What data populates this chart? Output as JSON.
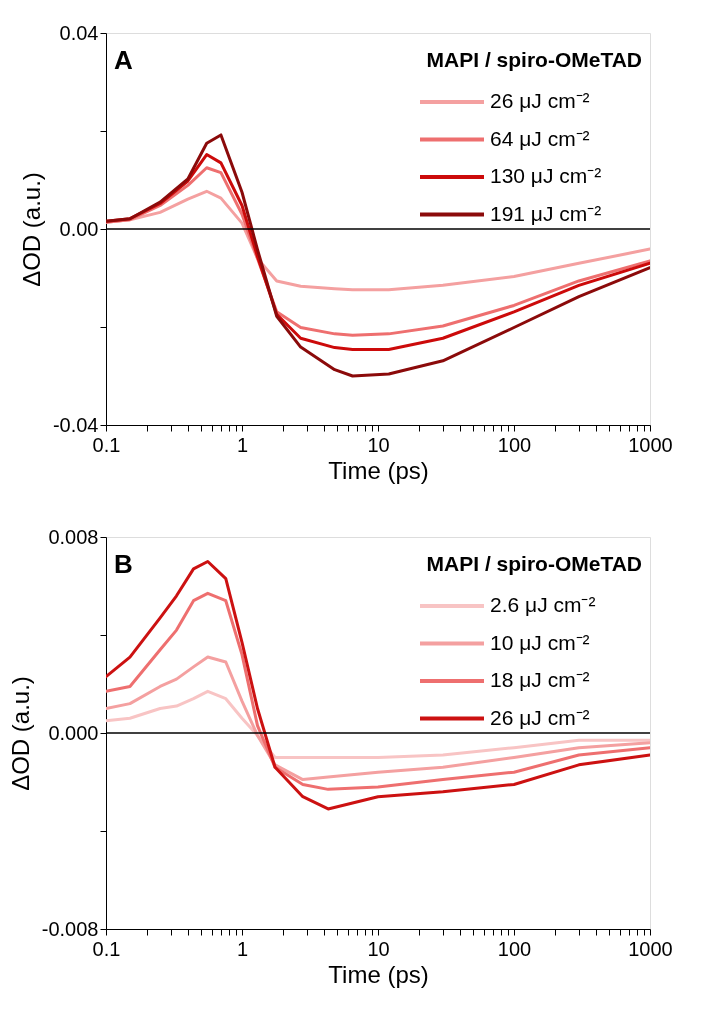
{
  "chart_data": [
    {
      "type": "line",
      "annotations": [
        "A"
      ],
      "legend_title": "MAPI / spiro-OMeTAD",
      "legend": "top right",
      "xlabel": "Time (ps)",
      "ylabel": "ΔOD (a.u.)",
      "log": "x",
      "grid": false,
      "line_style": "solid",
      "marker": "none",
      "xlim": [
        0.1,
        1000
      ],
      "ylim": [
        -0.04,
        0.04
      ],
      "xticks": [
        0.1,
        {
          "value": 0.2,
          "label": null
        },
        {
          "value": 0.3,
          "label": null
        },
        {
          "value": 0.4,
          "label": null
        },
        {
          "value": 0.5,
          "label": null
        },
        {
          "value": 0.6,
          "label": null
        },
        {
          "value": 0.7,
          "label": null
        },
        {
          "value": 0.8,
          "label": null
        },
        {
          "value": 0.9,
          "label": null
        },
        1,
        {
          "value": 2,
          "label": null
        },
        {
          "value": 3,
          "label": null
        },
        {
          "value": 4,
          "label": null
        },
        {
          "value": 5,
          "label": null
        },
        {
          "value": 6,
          "label": null
        },
        {
          "value": 7,
          "label": null
        },
        {
          "value": 8,
          "label": null
        },
        {
          "value": 9,
          "label": null
        },
        10,
        {
          "value": 20,
          "label": null
        },
        {
          "value": 30,
          "label": null
        },
        {
          "value": 40,
          "label": null
        },
        {
          "value": 50,
          "label": null
        },
        {
          "value": 60,
          "label": null
        },
        {
          "value": 70,
          "label": null
        },
        {
          "value": 80,
          "label": null
        },
        {
          "value": 90,
          "label": null
        },
        100,
        {
          "value": 200,
          "label": null
        },
        {
          "value": 300,
          "label": null
        },
        {
          "value": 400,
          "label": null
        },
        {
          "value": 500,
          "label": null
        },
        {
          "value": 600,
          "label": null
        },
        {
          "value": 700,
          "label": null
        },
        {
          "value": 800,
          "label": null
        },
        {
          "value": 900,
          "label": null
        },
        1000
      ],
      "yticks": [
        -0.04,
        {
          "value": -0.02,
          "label": null
        },
        {
          "value": 0,
          "label": "0.00"
        },
        {
          "value": 0.02,
          "label": null
        },
        0.04
      ],
      "ref_lines": [
        {
          "axis": "y",
          "value": 0,
          "color": "#000000"
        }
      ],
      "x": [
        0.1,
        0.15,
        0.25,
        0.4,
        0.55,
        0.7,
        1,
        1.3,
        1.8,
        2.7,
        4.8,
        6.5,
        12,
        30,
        100,
        300,
        1000
      ],
      "series": [
        {
          "name": "26 μJ cm⁻²",
          "color": "#f4a0a0",
          "values": [
            0.0014,
            0.0019,
            0.0034,
            0.0061,
            0.0077,
            0.0063,
            0.0012,
            -0.006,
            -0.0106,
            -0.0117,
            -0.0122,
            -0.0124,
            -0.0124,
            -0.0115,
            -0.0097,
            -0.007,
            -0.0041
          ]
        },
        {
          "name": "64 μJ cm⁻²",
          "color": "#ee6f6f",
          "values": [
            0.0014,
            0.0019,
            0.0048,
            0.0089,
            0.0125,
            0.0115,
            0.003,
            -0.006,
            -0.0169,
            -0.0201,
            -0.0214,
            -0.0217,
            -0.0214,
            -0.0198,
            -0.0156,
            -0.0106,
            -0.0065
          ]
        },
        {
          "name": "130 μJ cm⁻²",
          "color": "#cc0a0a",
          "values": [
            0.0016,
            0.0021,
            0.0052,
            0.0098,
            0.0152,
            0.0135,
            0.0048,
            -0.0056,
            -0.0174,
            -0.0223,
            -0.0242,
            -0.0246,
            -0.0246,
            -0.0223,
            -0.0169,
            -0.0115,
            -0.007
          ]
        },
        {
          "name": "191 μJ cm⁻²",
          "color": "#8b0a0a",
          "values": [
            0.0016,
            0.0021,
            0.0055,
            0.0102,
            0.0175,
            0.0192,
            0.0075,
            -0.0042,
            -0.0178,
            -0.0241,
            -0.0287,
            -0.03,
            -0.0296,
            -0.0269,
            -0.0201,
            -0.0138,
            -0.0079
          ]
        }
      ]
    },
    {
      "type": "line",
      "annotations": [
        "B"
      ],
      "legend_title": "MAPI / spiro-OMeTAD",
      "legend": "top right",
      "xlabel": "Time (ps)",
      "ylabel": "ΔOD (a.u.)",
      "log": "x",
      "grid": false,
      "line_style": "solid",
      "marker": "none",
      "xlim": [
        0.1,
        1000
      ],
      "ylim": [
        -0.008,
        0.008
      ],
      "xticks": [
        0.1,
        {
          "value": 0.2,
          "label": null
        },
        {
          "value": 0.3,
          "label": null
        },
        {
          "value": 0.4,
          "label": null
        },
        {
          "value": 0.5,
          "label": null
        },
        {
          "value": 0.6,
          "label": null
        },
        {
          "value": 0.7,
          "label": null
        },
        {
          "value": 0.8,
          "label": null
        },
        {
          "value": 0.9,
          "label": null
        },
        1,
        {
          "value": 2,
          "label": null
        },
        {
          "value": 3,
          "label": null
        },
        {
          "value": 4,
          "label": null
        },
        {
          "value": 5,
          "label": null
        },
        {
          "value": 6,
          "label": null
        },
        {
          "value": 7,
          "label": null
        },
        {
          "value": 8,
          "label": null
        },
        {
          "value": 9,
          "label": null
        },
        10,
        {
          "value": 20,
          "label": null
        },
        {
          "value": 30,
          "label": null
        },
        {
          "value": 40,
          "label": null
        },
        {
          "value": 50,
          "label": null
        },
        {
          "value": 60,
          "label": null
        },
        {
          "value": 70,
          "label": null
        },
        {
          "value": 80,
          "label": null
        },
        {
          "value": 90,
          "label": null
        },
        100,
        {
          "value": 200,
          "label": null
        },
        {
          "value": 300,
          "label": null
        },
        {
          "value": 400,
          "label": null
        },
        {
          "value": 500,
          "label": null
        },
        {
          "value": 600,
          "label": null
        },
        {
          "value": 700,
          "label": null
        },
        {
          "value": 800,
          "label": null
        },
        {
          "value": 900,
          "label": null
        },
        1000
      ],
      "yticks": [
        -0.008,
        {
          "value": -0.004,
          "label": null
        },
        {
          "value": 0,
          "label": "0.000"
        },
        {
          "value": 0.004,
          "label": null
        },
        0.008
      ],
      "ref_lines": [
        {
          "axis": "y",
          "value": 0,
          "color": "#000000"
        }
      ],
      "x": [
        0.1,
        0.15,
        0.25,
        0.33,
        0.44,
        0.56,
        0.76,
        1,
        1.3,
        1.75,
        2.8,
        4.3,
        10,
        30,
        100,
        300,
        1000
      ],
      "series": [
        {
          "name": "2.6 μJ cm⁻²",
          "color": "#f8c4c4",
          "values": [
            0.0005,
            0.0006,
            0.001,
            0.0011,
            0.0014,
            0.0017,
            0.0014,
            0.0006,
            -0.0001,
            -0.001,
            -0.001,
            -0.001,
            -0.001,
            -0.0009,
            -0.0006,
            -0.0003,
            -0.0003
          ]
        },
        {
          "name": "10 μJ cm⁻²",
          "color": "#f4a0a0",
          "values": [
            0.001,
            0.0012,
            0.0019,
            0.0022,
            0.0027,
            0.0031,
            0.0029,
            0.0013,
            -0.0001,
            -0.0013,
            -0.0019,
            -0.0018,
            -0.0016,
            -0.0014,
            -0.001,
            -0.0006,
            -0.0004
          ]
        },
        {
          "name": "18 μJ cm⁻²",
          "color": "#ee6f6f",
          "values": [
            0.0017,
            0.0019,
            0.0034,
            0.0042,
            0.0054,
            0.0057,
            0.0054,
            0.0032,
            0.0003,
            -0.0014,
            -0.0021,
            -0.0023,
            -0.0022,
            -0.0019,
            -0.0016,
            -0.0009,
            -0.0006
          ]
        },
        {
          "name": "26 μJ cm⁻²",
          "color": "#cc1111",
          "values": [
            0.0023,
            0.0031,
            0.0047,
            0.0056,
            0.0067,
            0.007,
            0.0063,
            0.0037,
            0.001,
            -0.0014,
            -0.0026,
            -0.0031,
            -0.0026,
            -0.0024,
            -0.0021,
            -0.0013,
            -0.0009
          ]
        }
      ]
    }
  ]
}
